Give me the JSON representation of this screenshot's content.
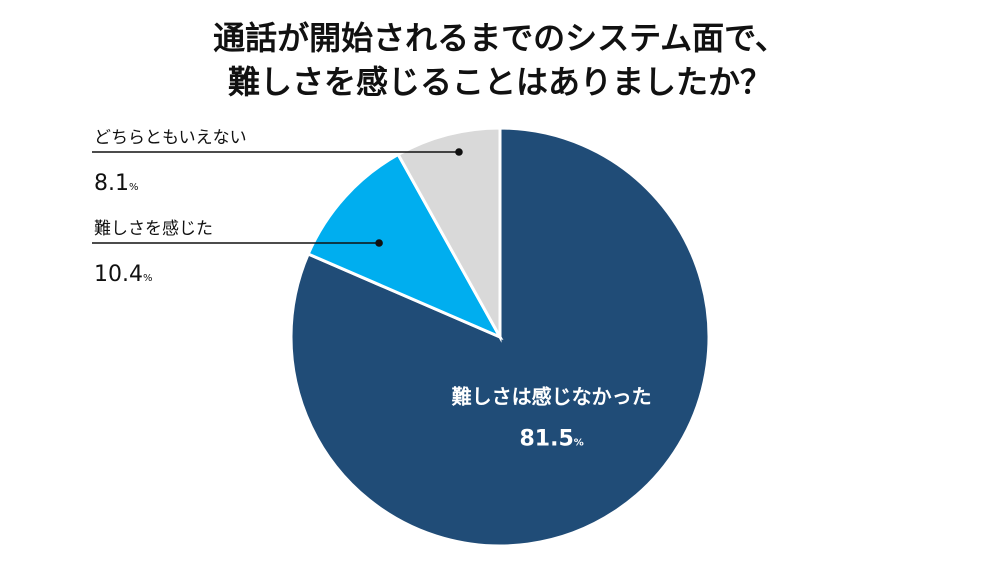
{
  "title_lines": [
    "通話が開始されるまでのシステム面で、",
    "難しさを感じることはありましたか？"
  ],
  "chart_data": {
    "type": "pie",
    "title": "通話が開始されるまでのシステム面で、難しさを感じることはありましたか？",
    "unit": "%",
    "slices": [
      {
        "label": "難しさは感じなかった",
        "value": 81.5,
        "value_text": "81.5",
        "color": "#204c77",
        "label_position": "inside"
      },
      {
        "label": "難しさを感じた",
        "value": 10.4,
        "value_text": "10.4",
        "color": "#00aeef",
        "label_position": "outside-left"
      },
      {
        "label": "どちらともいえない",
        "value": 8.1,
        "value_text": "8.1",
        "color": "#d9d9d9",
        "label_position": "outside-left"
      }
    ],
    "start": "12 o'clock",
    "direction": "clockwise"
  }
}
